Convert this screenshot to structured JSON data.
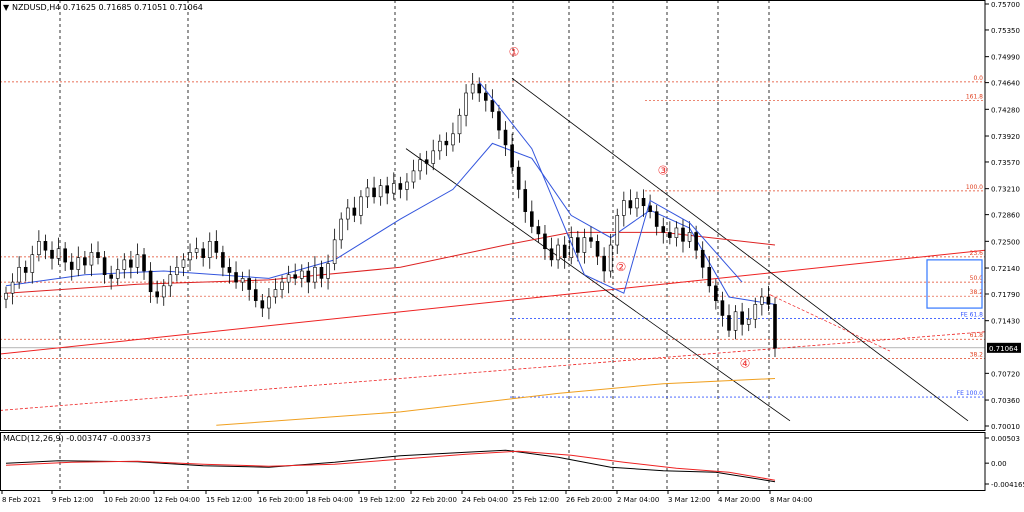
{
  "header": {
    "title": "NZDUSD,H4  0.71625 0.71685 0.71051 0.71064",
    "arrow": "▼"
  },
  "colors": {
    "bull": "#ffffff",
    "bear": "#000000",
    "ma_fast": "#3355dd",
    "ma_slow": "#dd2222",
    "ma_long": "#f0a020",
    "fib": "#e04020",
    "fe": "#3355ff",
    "channel": "#000000",
    "trend": "#ee2222",
    "wave": "#ee3333",
    "box": "#3377ff",
    "macd": "#000000",
    "signal": "#ee2222",
    "price_tag_bg": "#000000",
    "price_tag_text": "#ffffff"
  },
  "chart_data": [
    {
      "type": "candlestick",
      "symbol": "NZDUSD",
      "timeframe": "H4",
      "ohlc_current": {
        "open": 0.71625,
        "high": 0.71685,
        "low": 0.71051,
        "close": 0.71064
      },
      "current_price_label": "0.71064",
      "y_ticks": [
        "0.75700",
        "0.75350",
        "0.74990",
        "0.74640",
        "0.74280",
        "0.73920",
        "0.73570",
        "0.73210",
        "0.72860",
        "0.72500",
        "0.72140",
        "0.71790",
        "0.71430",
        "0.71064",
        "0.70720",
        "0.70360",
        "0.70010"
      ],
      "ylim": [
        0.7001,
        0.757
      ],
      "x_ticks": [
        "8 Feb 2021",
        "9 Feb 12:00",
        "10 Feb 20:00",
        "12 Feb 04:00",
        "15 Feb 12:00",
        "16 Feb 20:00",
        "18 Feb 04:00",
        "19 Feb 12:00",
        "22 Feb 20:00",
        "24 Feb 04:00",
        "25 Feb 12:00",
        "26 Feb 20:00",
        "2 Mar 04:00",
        "3 Mar 12:00",
        "4 Mar 20:00",
        "8 Mar 04:00"
      ],
      "closes": [
        0.718,
        0.7195,
        0.7215,
        0.7208,
        0.7232,
        0.725,
        0.7238,
        0.7227,
        0.724,
        0.7222,
        0.7212,
        0.7228,
        0.7218,
        0.7235,
        0.7228,
        0.7205,
        0.72,
        0.7212,
        0.7225,
        0.7215,
        0.7232,
        0.721,
        0.7182,
        0.7175,
        0.719,
        0.7205,
        0.7215,
        0.7225,
        0.7235,
        0.724,
        0.7228,
        0.725,
        0.7235,
        0.7215,
        0.7208,
        0.7195,
        0.72,
        0.7185,
        0.717,
        0.716,
        0.7175,
        0.7185,
        0.7195,
        0.7205,
        0.72,
        0.721,
        0.7195,
        0.7215,
        0.72,
        0.722,
        0.7252,
        0.728,
        0.7295,
        0.7285,
        0.731,
        0.7322,
        0.731,
        0.7325,
        0.7315,
        0.7328,
        0.732,
        0.733,
        0.7345,
        0.736,
        0.7355,
        0.7372,
        0.7385,
        0.738,
        0.7395,
        0.742,
        0.745,
        0.7462,
        0.745,
        0.744,
        0.7425,
        0.74,
        0.738,
        0.735,
        0.732,
        0.729,
        0.727,
        0.726,
        0.724,
        0.7225,
        0.7245,
        0.7228,
        0.7255,
        0.7235,
        0.7255,
        0.725,
        0.723,
        0.721,
        0.7245,
        0.7285,
        0.7305,
        0.7295,
        0.7308,
        0.7298,
        0.729,
        0.727,
        0.7262,
        0.7255,
        0.7268,
        0.725,
        0.7262,
        0.7238,
        0.7215,
        0.719,
        0.717,
        0.715,
        0.713,
        0.7155,
        0.7138,
        0.7145,
        0.7165,
        0.7175,
        0.7165,
        0.7106
      ],
      "ma_fast": {
        "name": "",
        "values_at": [
          [
            0,
            0.719
          ],
          [
            12,
            0.7205
          ],
          [
            24,
            0.721
          ],
          [
            40,
            0.72
          ],
          [
            50,
            0.7225
          ],
          [
            60,
            0.728
          ],
          [
            68,
            0.732
          ],
          [
            74,
            0.7382
          ],
          [
            80,
            0.7362
          ],
          [
            86,
            0.7285
          ],
          [
            92,
            0.7255
          ],
          [
            98,
            0.7292
          ],
          [
            104,
            0.7268
          ],
          [
            110,
            0.7175
          ],
          [
            117,
            0.7165
          ]
        ]
      },
      "ma_slow": {
        "values_at": [
          [
            0,
            0.718
          ],
          [
            20,
            0.7192
          ],
          [
            40,
            0.7198
          ],
          [
            60,
            0.7215
          ],
          [
            76,
            0.7245
          ],
          [
            86,
            0.7262
          ],
          [
            100,
            0.7262
          ],
          [
            117,
            0.7245
          ]
        ]
      },
      "ma_long": {
        "values_at": [
          [
            32,
            0.7002
          ],
          [
            60,
            0.702
          ],
          [
            84,
            0.7045
          ],
          [
            100,
            0.7058
          ],
          [
            117,
            0.7065
          ]
        ]
      },
      "fib_levels": [
        {
          "label": "0.0",
          "price": 0.7465
        },
        {
          "label": "161.8",
          "price": 0.744
        },
        {
          "label": "100.0",
          "price": 0.7318
        },
        {
          "label": "23.6",
          "price": 0.7229
        },
        {
          "label": "50.0",
          "price": 0.7195
        },
        {
          "label": "38.2",
          "price": 0.7176
        },
        {
          "label": "61.8",
          "price": 0.7118
        },
        {
          "label": "38.2",
          "price": 0.7092
        }
      ],
      "fe_levels": [
        {
          "label": "FE 61.8",
          "price": 0.7146
        },
        {
          "label": "FE 100.0",
          "price": 0.704
        }
      ],
      "waves": [
        "①",
        "②",
        "③",
        "④"
      ]
    },
    {
      "type": "line",
      "title": "MACD(12,26,9) -0.003747 -0.003373",
      "y_ticks": [
        "0.00503",
        "0.00",
        "-0.004165"
      ],
      "ylim": [
        -0.004165,
        0.00503
      ],
      "series": [
        {
          "name": "MACD",
          "values_at": [
            [
              0,
              0.0
            ],
            [
              8,
              0.0005
            ],
            [
              20,
              0.0003
            ],
            [
              30,
              -0.0005
            ],
            [
              40,
              -0.0008
            ],
            [
              50,
              0.0002
            ],
            [
              60,
              0.0015
            ],
            [
              70,
              0.0022
            ],
            [
              76,
              0.0026
            ],
            [
              84,
              0.0012
            ],
            [
              92,
              -0.0008
            ],
            [
              100,
              -0.0015
            ],
            [
              108,
              -0.0018
            ],
            [
              117,
              -0.0037
            ]
          ]
        },
        {
          "name": "Signal",
          "values_at": [
            [
              0,
              -0.0004
            ],
            [
              10,
              0.0002
            ],
            [
              20,
              0.0004
            ],
            [
              30,
              -0.0002
            ],
            [
              40,
              -0.0006
            ],
            [
              50,
              -0.0002
            ],
            [
              60,
              0.0008
            ],
            [
              70,
              0.0018
            ],
            [
              78,
              0.0024
            ],
            [
              86,
              0.0016
            ],
            [
              94,
              0.0002
            ],
            [
              102,
              -0.001
            ],
            [
              110,
              -0.0018
            ],
            [
              117,
              -0.0034
            ]
          ]
        }
      ]
    }
  ]
}
